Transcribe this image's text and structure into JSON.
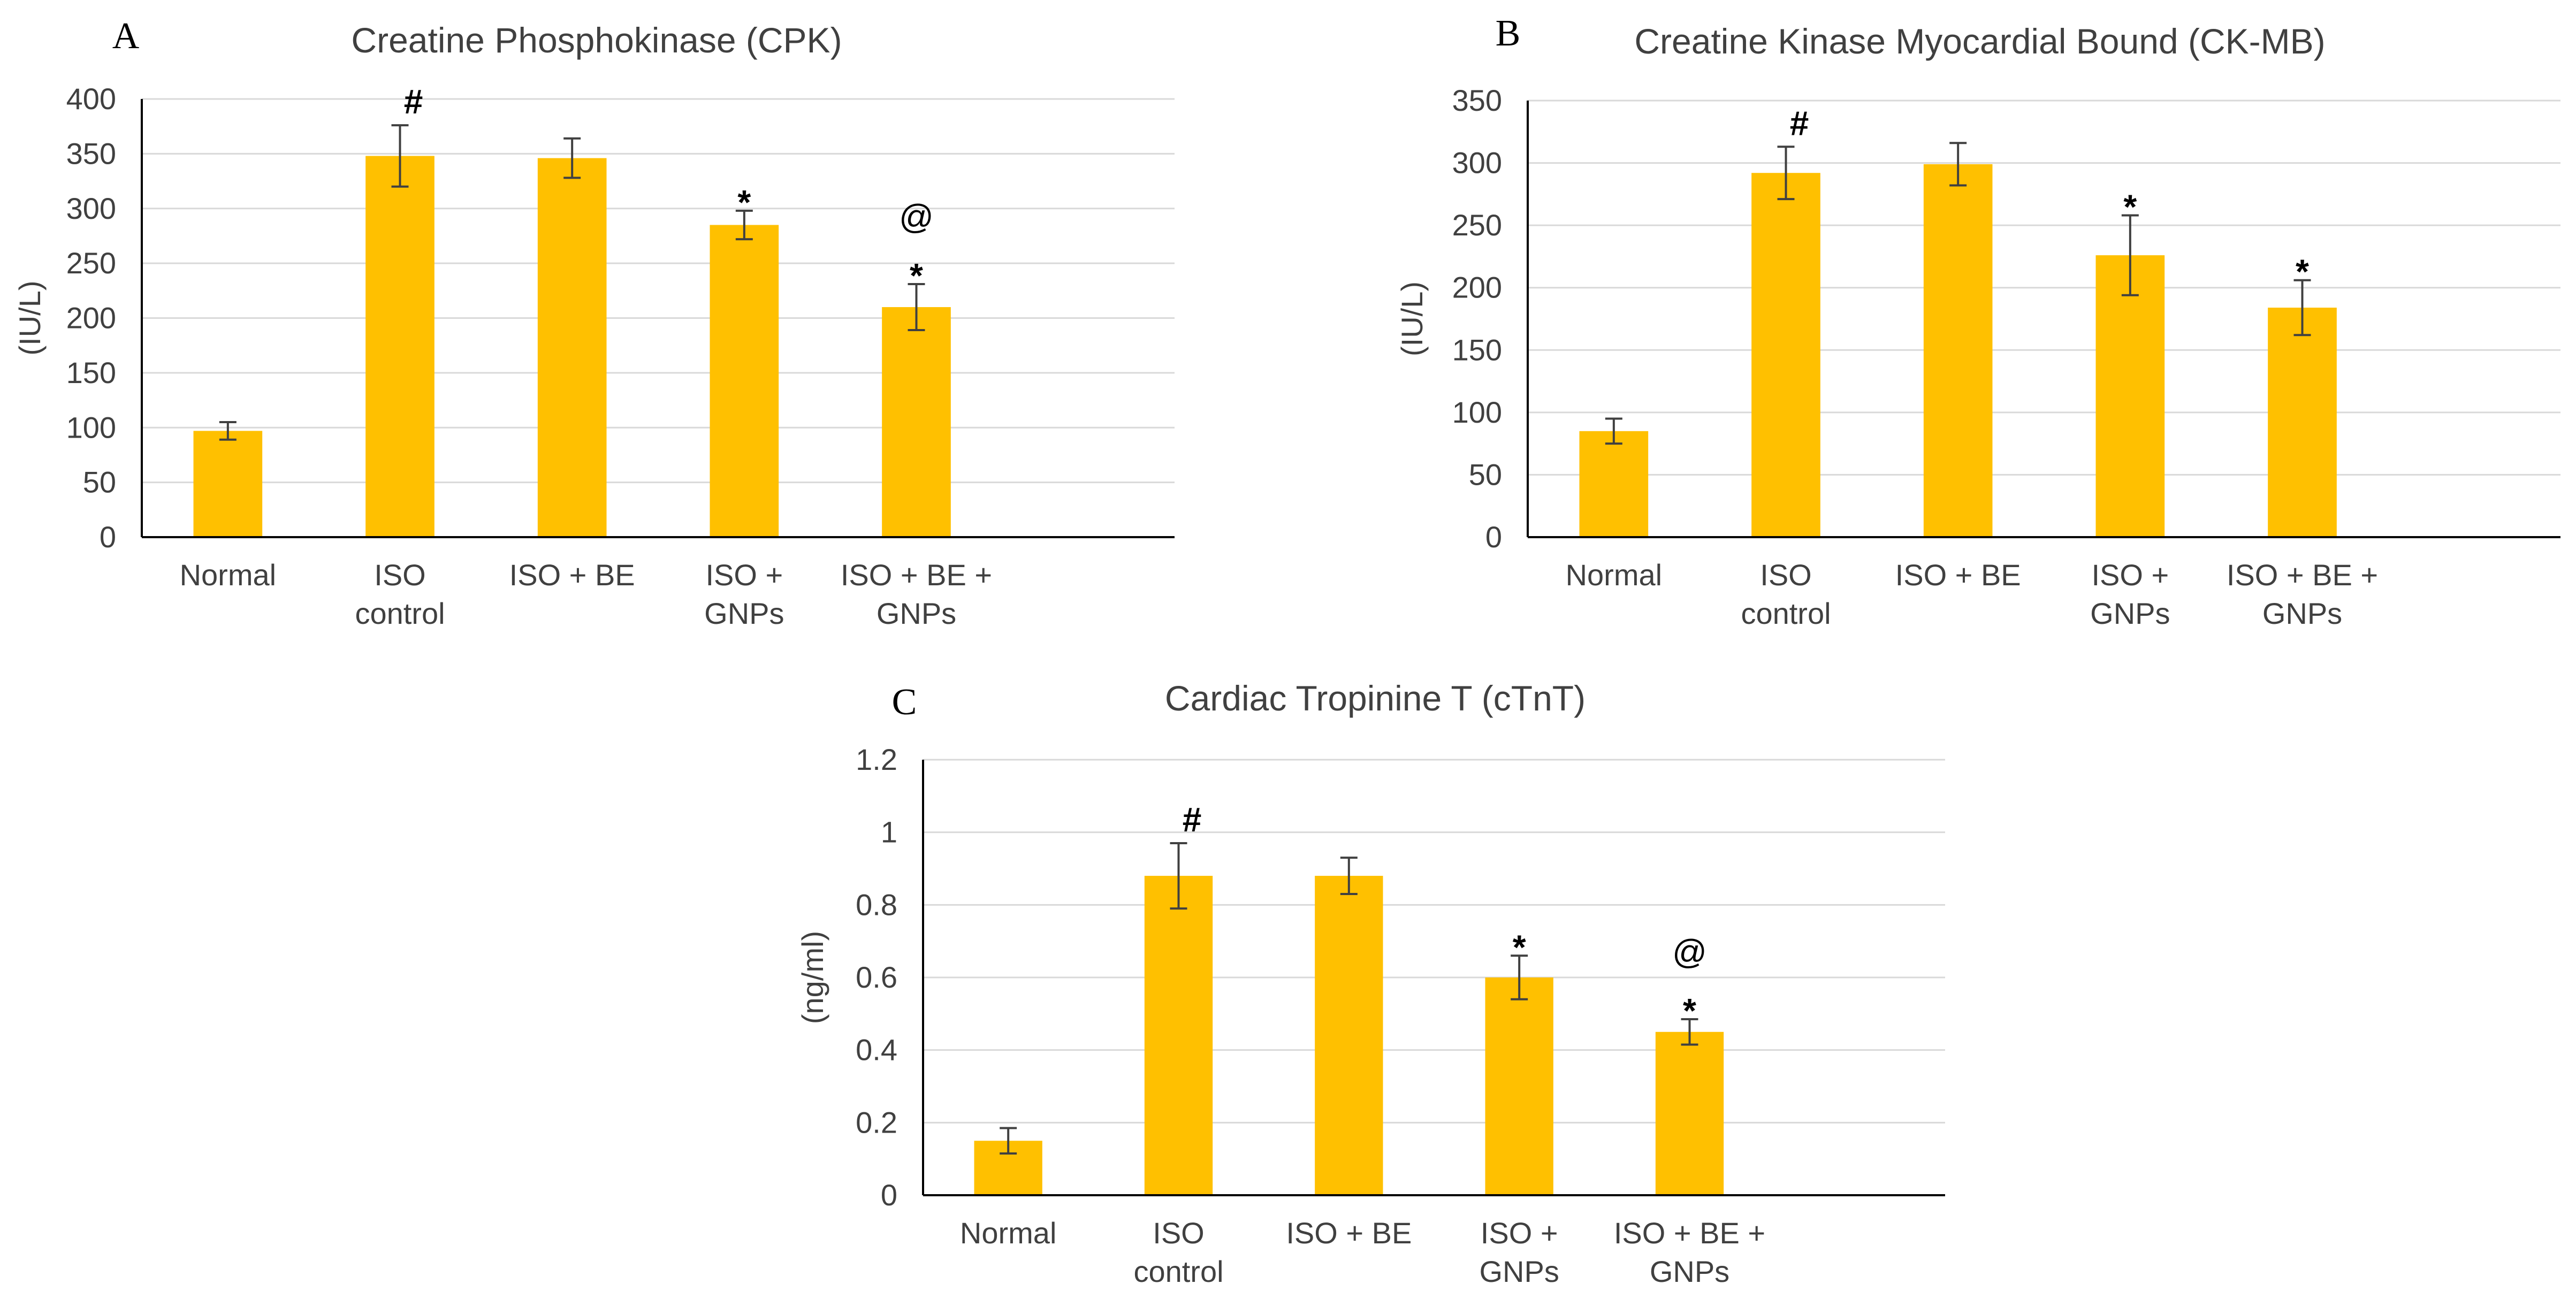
{
  "chart_data": [
    {
      "type": "bar",
      "panel_label": "A",
      "title": "Creatine Phosphokinase (CPK)",
      "ylabel": "(IU/L)",
      "xlabel": "",
      "ylim": [
        0,
        400
      ],
      "yticks": [
        0,
        50,
        100,
        150,
        200,
        250,
        300,
        350,
        400
      ],
      "categories": [
        [
          "Normal"
        ],
        [
          "ISO",
          "control"
        ],
        [
          "ISO + BE"
        ],
        [
          "ISO +",
          "GNPs"
        ],
        [
          "ISO + BE +",
          "GNPs"
        ]
      ],
      "values": [
        97,
        348,
        346,
        285,
        210
      ],
      "errors": [
        8,
        28,
        18,
        13,
        21
      ],
      "annotations": [
        [],
        [
          "#"
        ],
        [],
        [
          "*"
        ],
        [
          "*",
          "@"
        ]
      ],
      "grid": true,
      "bar_color": "#FFC000"
    },
    {
      "type": "bar",
      "panel_label": "B",
      "title": "Creatine Kinase Myocardial Bound (CK-MB)",
      "ylabel": "(IU/L)",
      "xlabel": "",
      "ylim": [
        0,
        350
      ],
      "yticks": [
        0,
        50,
        100,
        150,
        200,
        250,
        300,
        350
      ],
      "categories": [
        [
          "Normal"
        ],
        [
          "ISO",
          "control"
        ],
        [
          "ISO + BE"
        ],
        [
          "ISO +",
          "GNPs"
        ],
        [
          "ISO + BE +",
          "GNPs"
        ]
      ],
      "values": [
        85,
        292,
        299,
        226,
        184
      ],
      "errors": [
        10,
        21,
        17,
        32,
        22
      ],
      "annotations": [
        [],
        [
          "#"
        ],
        [],
        [
          "*"
        ],
        [
          "*"
        ]
      ],
      "grid": true,
      "bar_color": "#FFC000"
    },
    {
      "type": "bar",
      "panel_label": "C",
      "title": "Cardiac Tropinine T (cTnT)",
      "ylabel": "(ng/ml)",
      "xlabel": "",
      "ylim": [
        0,
        1.2
      ],
      "yticks": [
        0,
        0.2,
        0.4,
        0.6,
        0.8,
        1,
        1.2
      ],
      "categories": [
        [
          "Normal"
        ],
        [
          "ISO",
          "control"
        ],
        [
          "ISO + BE"
        ],
        [
          "ISO +",
          "GNPs"
        ],
        [
          "ISO + BE +",
          "GNPs"
        ]
      ],
      "values": [
        0.15,
        0.88,
        0.88,
        0.6,
        0.45
      ],
      "errors": [
        0.035,
        0.09,
        0.05,
        0.06,
        0.035
      ],
      "annotations": [
        [],
        [
          "#"
        ],
        [],
        [
          "*"
        ],
        [
          "*",
          "@"
        ]
      ],
      "grid": true,
      "bar_color": "#FFC000"
    }
  ]
}
